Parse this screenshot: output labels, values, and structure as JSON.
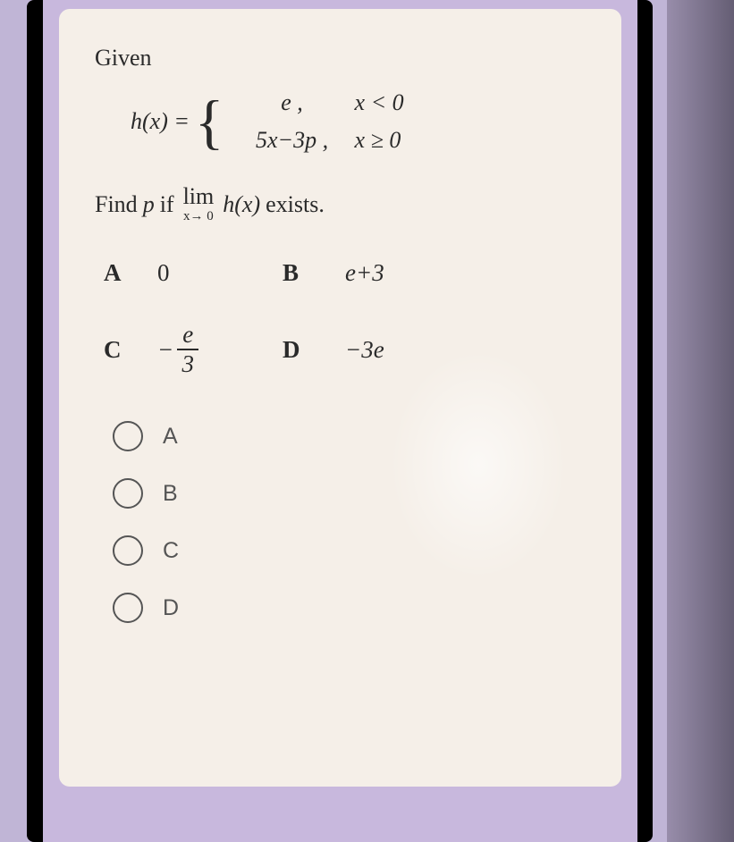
{
  "question": {
    "given_label": "Given",
    "func_name": "h(x) =",
    "case1_expr": "e  ,",
    "case1_cond": "x < 0",
    "case2_expr": "5x−3p ,",
    "case2_cond": "x ≥  0",
    "find_prefix": "Find",
    "find_var": "p",
    "find_if": "if",
    "lim_text": "lim",
    "lim_sub": "x→ 0",
    "find_hx": "h(x)",
    "find_suffix": "exists."
  },
  "choices": {
    "a_label": "A",
    "a_value": "0",
    "b_label": "B",
    "b_value": "e+3",
    "c_label": "C",
    "c_neg": "−",
    "c_num": "e",
    "c_den": "3",
    "d_label": "D",
    "d_value": "−3e"
  },
  "options": {
    "a": "A",
    "b": "B",
    "c": "C",
    "d": "D"
  }
}
